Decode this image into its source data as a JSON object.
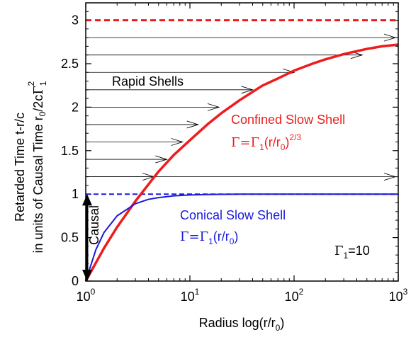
{
  "chart_data": {
    "type": "line",
    "title": "",
    "xlabel": {
      "text": "Radius log(r/r",
      "sub": "0",
      "close": ")"
    },
    "ylabel": {
      "line1": "Retarded Time t-r/c",
      "line2_main": "in units of Causal Time r",
      "line2_sub": "0",
      "line2_mid": "/2c",
      "line2_gamma": "Γ",
      "line2_gsub": "1",
      "line2_sup": "2"
    },
    "x_scale": "log",
    "xlim": [
      1,
      1000
    ],
    "ylim": [
      0,
      3.2
    ],
    "x_ticks": [
      {
        "value": 1,
        "base": "10",
        "exp": "0"
      },
      {
        "value": 10,
        "base": "10",
        "exp": "1"
      },
      {
        "value": 100,
        "base": "10",
        "exp": "2"
      },
      {
        "value": 1000,
        "base": "10",
        "exp": "3"
      }
    ],
    "y_ticks": [
      {
        "value": 0,
        "label": "0"
      },
      {
        "value": 0.5,
        "label": "0.5"
      },
      {
        "value": 1,
        "label": "1"
      },
      {
        "value": 1.5,
        "label": "1.5"
      },
      {
        "value": 2,
        "label": "2"
      },
      {
        "value": 2.5,
        "label": "2.5"
      },
      {
        "value": 3,
        "label": "3"
      }
    ],
    "grid": false,
    "legend": "none",
    "series": [
      {
        "key": "confined",
        "color": "#ee1c1c",
        "style": "solid",
        "x": [
          1,
          1.5,
          2,
          3,
          5,
          7,
          10,
          15,
          20,
          30,
          50,
          70,
          100,
          150,
          200,
          300,
          500,
          700,
          1000
        ],
        "y": [
          0,
          0.38,
          0.62,
          0.92,
          1.26,
          1.45,
          1.62,
          1.81,
          1.93,
          2.08,
          2.25,
          2.33,
          2.42,
          2.5,
          2.55,
          2.61,
          2.67,
          2.7,
          2.72
        ]
      },
      {
        "key": "conical",
        "color": "#1a1adc",
        "style": "solid",
        "x": [
          1,
          1.25,
          1.5,
          2,
          3,
          4,
          5,
          7,
          10,
          15,
          20,
          30,
          50,
          100,
          1000
        ],
        "y": [
          0,
          0.36,
          0.56,
          0.75,
          0.89,
          0.94,
          0.96,
          0.98,
          0.99,
          0.995,
          0.997,
          0.999,
          1.0,
          1.0,
          1.0
        ]
      }
    ],
    "reference_lines": [
      {
        "y": 3,
        "color": "#ee1c1c",
        "style": "dashed"
      },
      {
        "y": 1,
        "color": "#1a1adc",
        "style": "dashed"
      }
    ],
    "rapid_shells": [
      {
        "y": 2.8,
        "arrow_x": 1000
      },
      {
        "y": 2.6,
        "arrow_x": 450
      },
      {
        "y": 2.4,
        "arrow_x": 100
      },
      {
        "y": 2.2,
        "arrow_x": 40
      },
      {
        "y": 2.0,
        "arrow_x": 19
      },
      {
        "y": 1.8,
        "arrow_x": 12
      },
      {
        "y": 1.6,
        "arrow_x": 8.5
      },
      {
        "y": 1.4,
        "arrow_x": 6
      },
      {
        "y": 1.2,
        "arrow_x": 4.5
      },
      {
        "y": 1.2,
        "arrow_x": 1000
      }
    ],
    "causal_arrow": {
      "x": 1,
      "y_from": 0,
      "y_to": 1,
      "label": "Causal"
    },
    "annotations": {
      "rapid_shells": "Rapid Shells",
      "confined_title": "Confined Slow Shell",
      "confined_eq": {
        "a": "Γ=Γ",
        "a_sub": "1",
        "b": "(r/r",
        "b_sub": "0",
        "c": ")",
        "c_sup": "2/3"
      },
      "conical_title": "Conical Slow Shell",
      "conical_eq": {
        "a": "Γ=Γ",
        "a_sub": "1",
        "b": "(r/r",
        "b_sub": "0",
        "c": ")"
      },
      "gamma_value": {
        "a": "Γ",
        "a_sub": "1",
        "b": "=10"
      }
    }
  }
}
